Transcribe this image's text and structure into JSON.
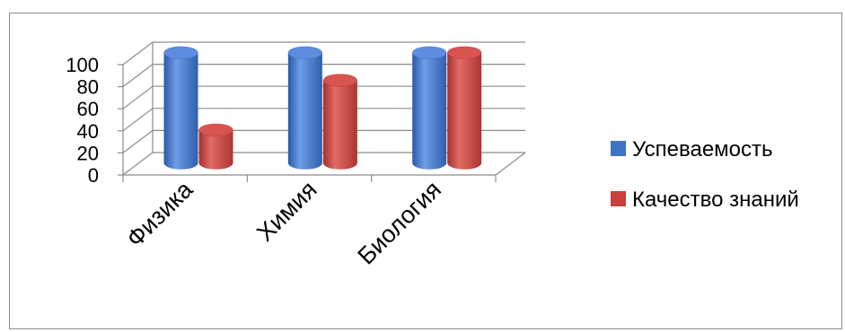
{
  "chart_data": {
    "type": "bar",
    "style": "3d-cylinder",
    "categories": [
      "Физика",
      "Химия",
      "Биология"
    ],
    "series": [
      {
        "name": "Успеваемость",
        "color": "#3f73c6",
        "values": [
          100,
          100,
          100
        ]
      },
      {
        "name": "Качество знаний",
        "color": "#c9403c",
        "values": [
          30,
          75,
          100
        ]
      }
    ],
    "yticks": [
      "0",
      "20",
      "40",
      "60",
      "80",
      "100"
    ],
    "ylim": [
      0,
      100
    ],
    "grid": true,
    "legend_position": "right"
  }
}
